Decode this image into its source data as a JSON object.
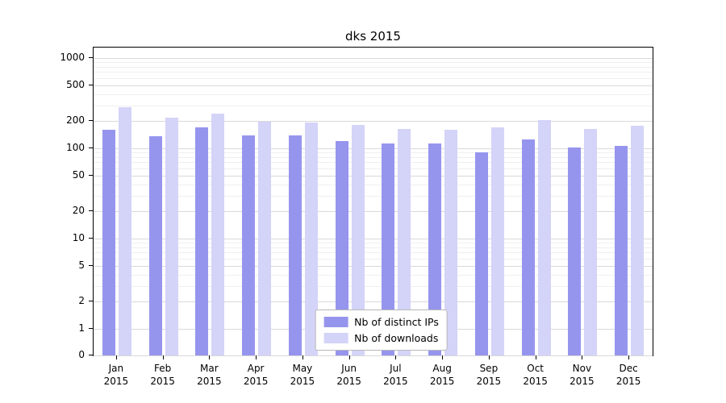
{
  "chart_data": {
    "type": "bar",
    "title": "dks 2015",
    "yscale": "symlog",
    "grid": true,
    "legend_position": "lower center",
    "y_ticks": [
      0,
      1,
      2,
      5,
      10,
      20,
      50,
      100,
      200,
      500,
      1000
    ],
    "ylim": [
      0,
      1200
    ],
    "categories": [
      "Jan 2015",
      "Feb 2015",
      "Mar 2015",
      "Apr 2015",
      "May 2015",
      "Jun 2015",
      "Jul 2015",
      "Aug 2015",
      "Sep 2015",
      "Oct 2015",
      "Nov 2015",
      "Dec 2015"
    ],
    "series": [
      {
        "name": "Nb of distinct IPs",
        "color": "#9695ee",
        "values": [
          160,
          135,
          170,
          140,
          140,
          120,
          112,
          112,
          90,
          125,
          102,
          106
        ]
      },
      {
        "name": "Nb of downloads",
        "color": "#d4d3f8",
        "values": [
          285,
          220,
          240,
          198,
          193,
          180,
          165,
          160,
          172,
          207,
          165,
          177
        ]
      }
    ]
  }
}
